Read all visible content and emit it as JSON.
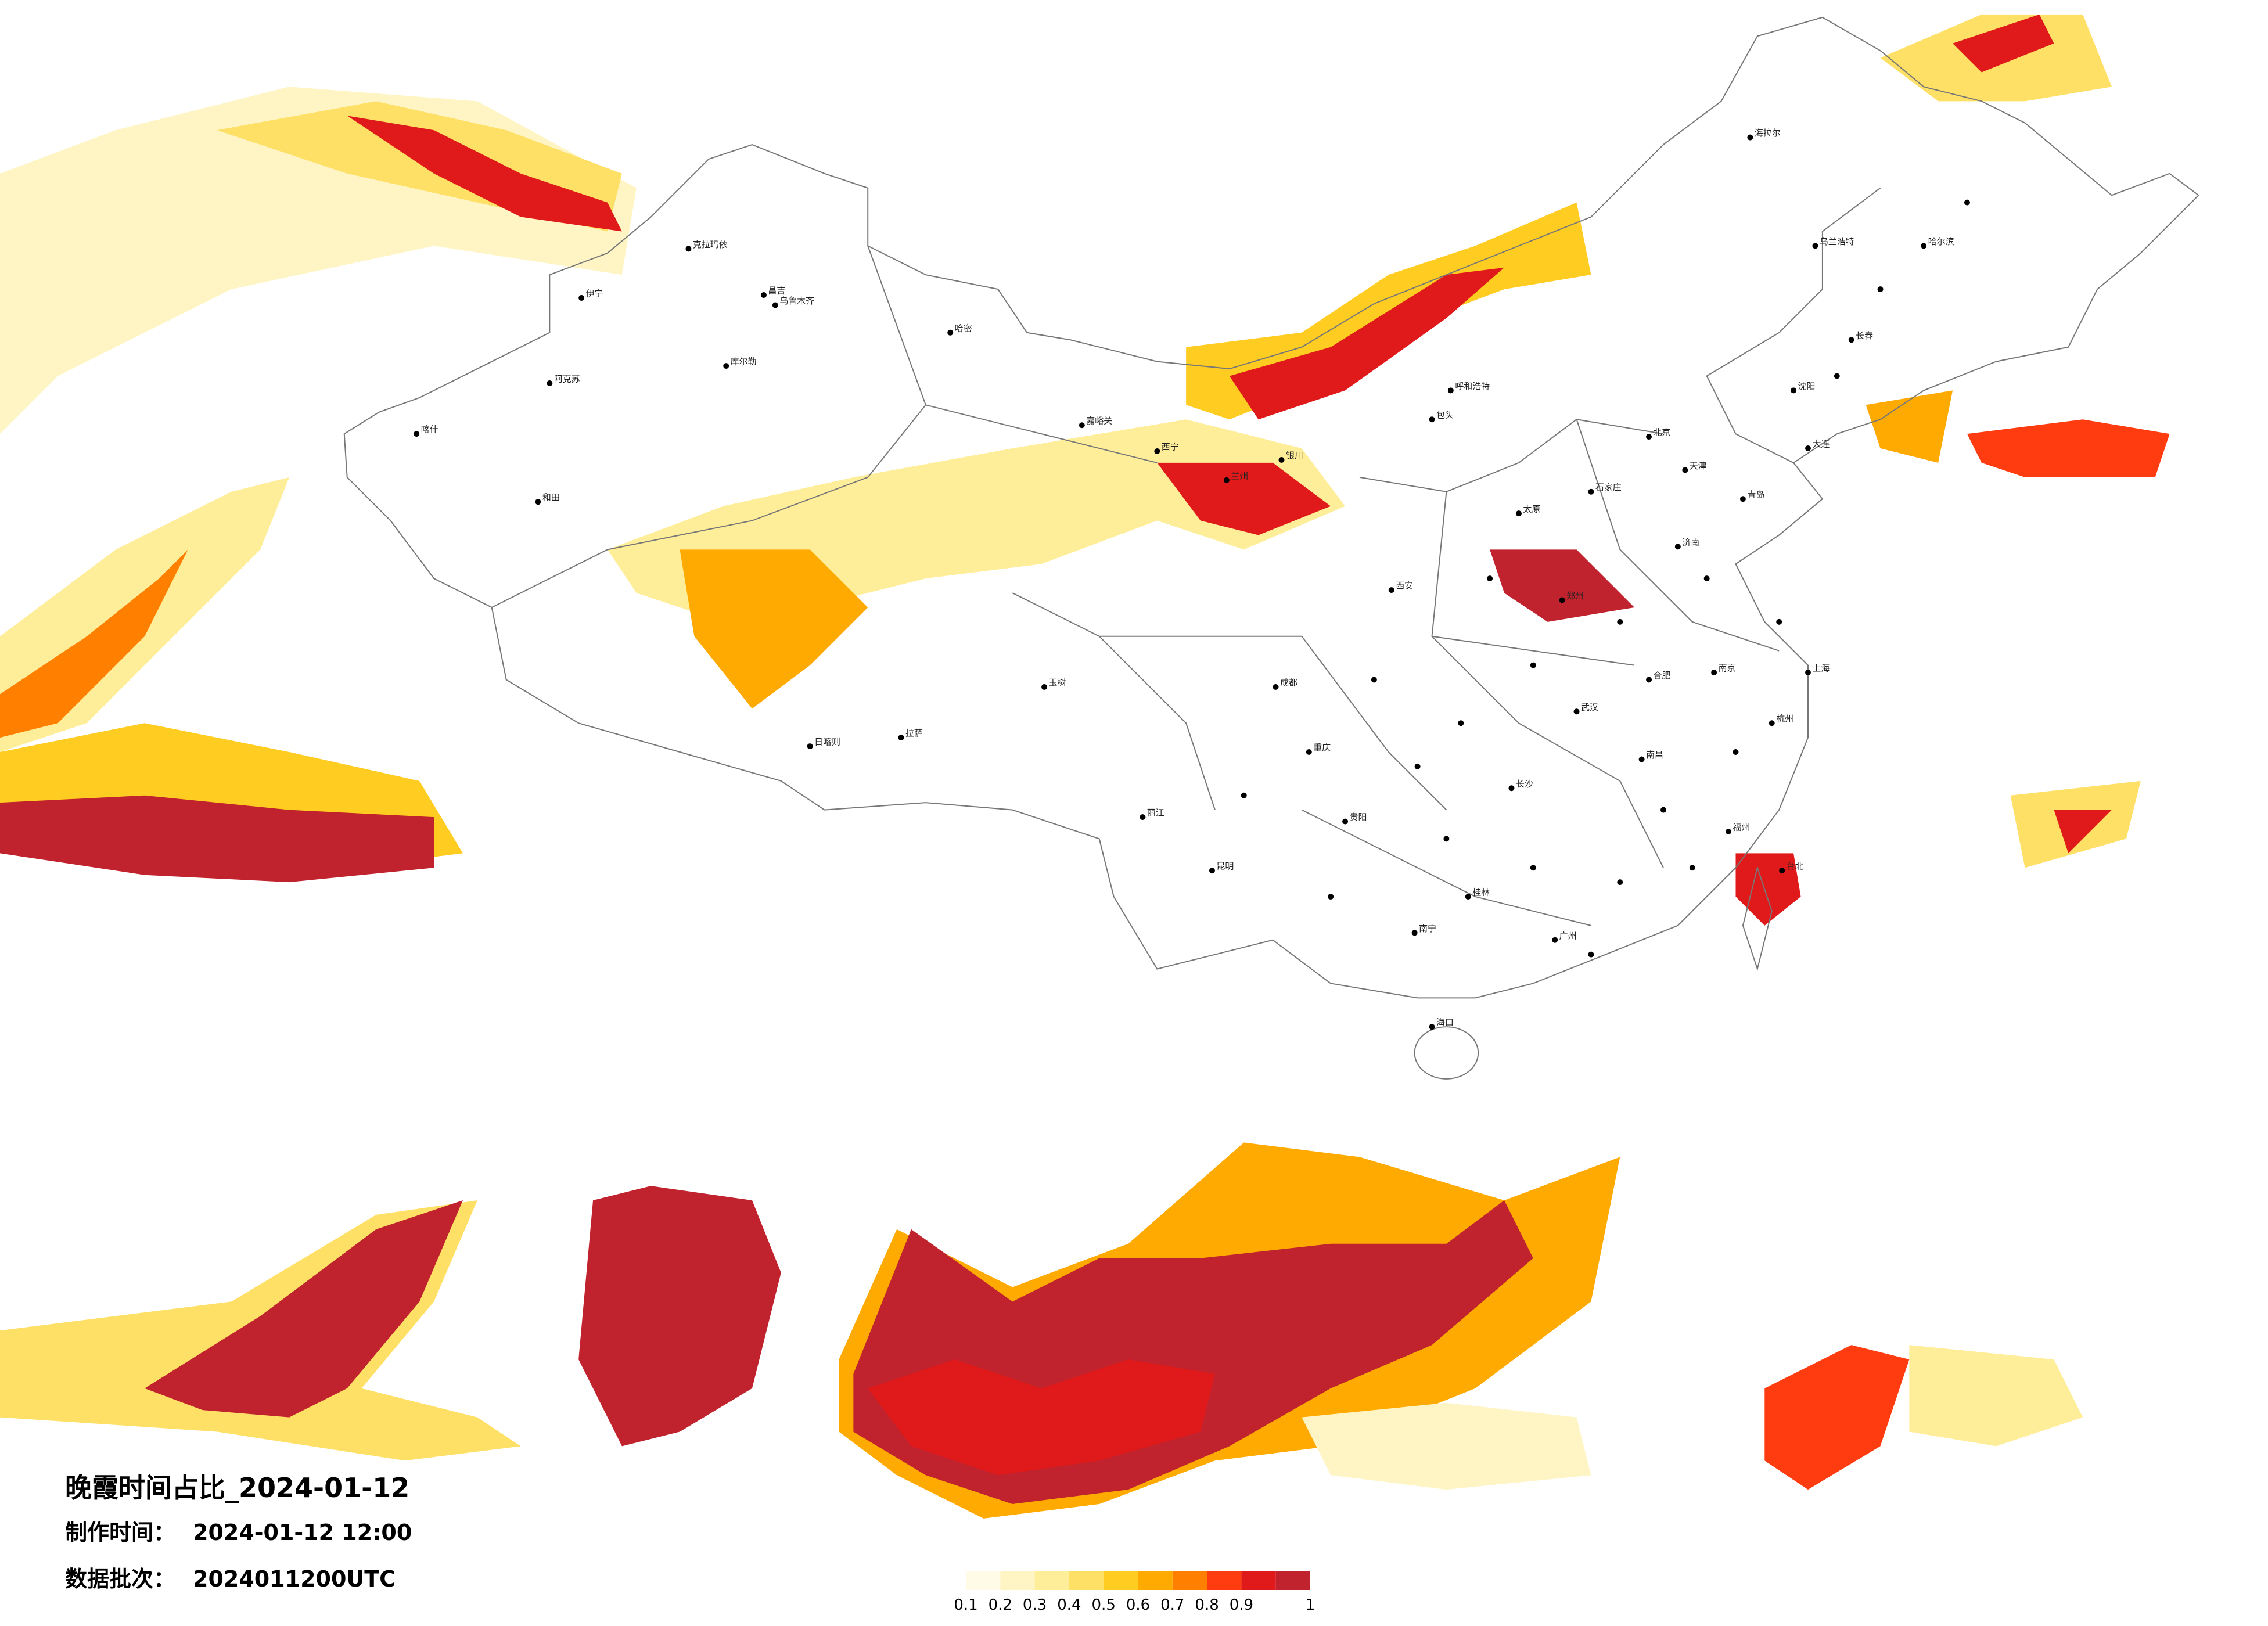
{
  "title": "晚霞时间占比_2024-01-12",
  "made_label": "制作时间：",
  "made_time": "2024-01-12 12:00",
  "batch_label": "数据批次：",
  "batch": "2024011200UTC",
  "legend": {
    "colors": [
      "#fffbe6",
      "#fff5c4",
      "#ffee99",
      "#ffe066",
      "#ffcc22",
      "#ffaa00",
      "#ff7f00",
      "#ff3b10",
      "#e01a1a",
      "#c0222e"
    ],
    "labels": [
      0.1,
      0.2,
      0.3,
      0.4,
      0.5,
      0.6,
      0.7,
      0.8,
      0.9,
      1
    ]
  },
  "cities": [
    "克拉玛依",
    "伊宁",
    "昌吉",
    "乌鲁木齐",
    "哈密",
    "库尔勒",
    "阿克苏",
    "喀什",
    "和田",
    "嘉峪关",
    "西宁",
    "兰州",
    "银川",
    "呼和浩特",
    "包头",
    "北京",
    "天津",
    "石家庄",
    "太原",
    "济南",
    "郑州",
    "西安",
    "成都",
    "重庆",
    "贵阳",
    "昆明",
    "南宁",
    "广州",
    "长沙",
    "武汉",
    "南昌",
    "杭州",
    "福州",
    "上海",
    "南京",
    "合肥",
    "沈阳",
    "长春",
    "哈尔滨",
    "海拉尔",
    "拉萨",
    "日喀则",
    "玉树",
    "海口",
    "台北",
    "大连",
    "青岛",
    "桂林",
    "丽江",
    "乌兰浩特"
  ]
}
